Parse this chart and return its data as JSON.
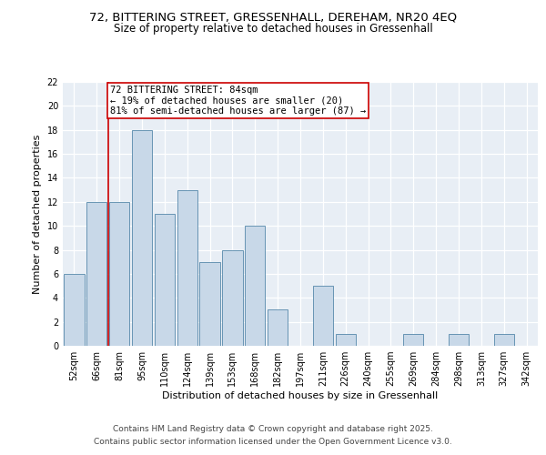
{
  "title_line1": "72, BITTERING STREET, GRESSENHALL, DEREHAM, NR20 4EQ",
  "title_line2": "Size of property relative to detached houses in Gressenhall",
  "xlabel": "Distribution of detached houses by size in Gressenhall",
  "ylabel": "Number of detached properties",
  "categories": [
    "52sqm",
    "66sqm",
    "81sqm",
    "95sqm",
    "110sqm",
    "124sqm",
    "139sqm",
    "153sqm",
    "168sqm",
    "182sqm",
    "197sqm",
    "211sqm",
    "226sqm",
    "240sqm",
    "255sqm",
    "269sqm",
    "284sqm",
    "298sqm",
    "313sqm",
    "327sqm",
    "342sqm"
  ],
  "values": [
    6,
    12,
    12,
    18,
    11,
    13,
    7,
    8,
    10,
    3,
    0,
    5,
    1,
    0,
    0,
    1,
    0,
    1,
    0,
    1,
    0
  ],
  "bar_color": "#c8d8e8",
  "bar_edge_color": "#5588aa",
  "red_line_x": 1.5,
  "red_line_color": "#cc0000",
  "annotation_text": "72 BITTERING STREET: 84sqm\n← 19% of detached houses are smaller (20)\n81% of semi-detached houses are larger (87) →",
  "annotation_box_color": "#cc0000",
  "ylim": [
    0,
    22
  ],
  "yticks": [
    0,
    2,
    4,
    6,
    8,
    10,
    12,
    14,
    16,
    18,
    20,
    22
  ],
  "background_color": "#e8eef5",
  "footer_line1": "Contains HM Land Registry data © Crown copyright and database right 2025.",
  "footer_line2": "Contains public sector information licensed under the Open Government Licence v3.0.",
  "title_fontsize": 9.5,
  "subtitle_fontsize": 8.5,
  "axis_label_fontsize": 8,
  "tick_fontsize": 7,
  "annotation_fontsize": 7.5,
  "footer_fontsize": 6.5
}
